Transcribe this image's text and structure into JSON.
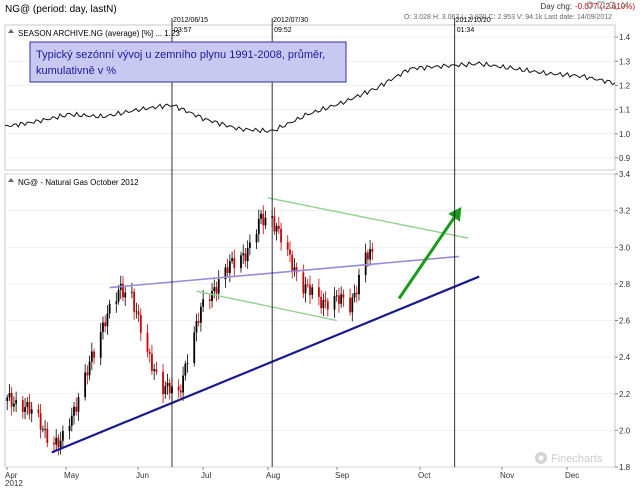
{
  "header": {
    "title": "NG@ (period: day, lastN)",
    "day_chg_label": "Day chg:",
    "day_chg_value": "-0.077 (-2.610%)",
    "ohlc_line": "O: 3.028  H: 3.062  L: 2.920  C: 2.953  V: 94.1k  Last date: 14/09/2012"
  },
  "top_panel": {
    "label": "SEASON ARCHIVE.NG (average) [%] ... 1.23",
    "note": {
      "line1": "Typický sezónní vývoj u zemního  plynu 1991-2008, průměr,",
      "line2": "kumulativně v %"
    }
  },
  "bottom_panel": {
    "label": "NG@ - Natural Gas October 2012"
  },
  "markers": [
    {
      "date": "2012/06/15",
      "time": "03:57"
    },
    {
      "date": "2012/07/30",
      "time": "09:52"
    },
    {
      "date": "2012/10/20",
      "time": "01:34"
    }
  ],
  "watermark": "Finecharts",
  "icons": [
    "pin-icon",
    "settings-icon",
    "zoom-icon",
    "close-icon",
    "collapse-icon"
  ],
  "colors": {
    "note_bg": "#c8c8f0",
    "note_border": "#3030a0",
    "note_text": "#1a1aa0",
    "upper_channel": "#9a8ad8",
    "lower_channel": "#1a1a8c",
    "flag_lines": "#8ed08e",
    "arrow": "#1a9a1a",
    "price": "#000000",
    "candle_down": "#cc0000"
  },
  "chart_data": [
    {
      "type": "line",
      "title": "SEASON ARCHIVE.NG (average) [%]",
      "ylim": [
        0.85,
        1.45
      ],
      "yticks": [
        "0.9",
        "1.0",
        "1.1",
        "1.2",
        "1.3",
        "1.4"
      ],
      "x": [
        "2012-04-01",
        "2012-04-15",
        "2012-04-30",
        "2012-05-15",
        "2012-05-31",
        "2012-06-15",
        "2012-06-30",
        "2012-07-15",
        "2012-07-30",
        "2012-08-15",
        "2012-08-31",
        "2012-09-15",
        "2012-09-30",
        "2012-10-15",
        "2012-10-31",
        "2012-11-15",
        "2012-11-30",
        "2012-12-15",
        "2012-12-31"
      ],
      "series": [
        {
          "values": [
            1.03,
            1.05,
            1.08,
            1.07,
            1.1,
            1.12,
            1.06,
            1.02,
            1.01,
            1.08,
            1.13,
            1.19,
            1.27,
            1.28,
            1.29,
            1.27,
            1.25,
            1.24,
            1.21
          ]
        }
      ]
    },
    {
      "type": "candlestick",
      "title": "NG@ - Natural Gas October 2012",
      "ylim": [
        1.8,
        3.4
      ],
      "yticks": [
        "1.8",
        "2.0",
        "2.2",
        "2.4",
        "2.6",
        "2.8",
        "3.0",
        "3.2",
        "3.4"
      ],
      "xticks": [
        "Apr",
        "2012",
        "May",
        "Jun",
        "Jul",
        "Aug",
        "Sep",
        "Oct",
        "Nov",
        "Dec"
      ],
      "x_range": [
        "2012-04-01",
        "2012-12-31"
      ],
      "close_path": [
        [
          "2012-04-02",
          2.16
        ],
        [
          "2012-04-09",
          2.15
        ],
        [
          "2012-04-16",
          2.05
        ],
        [
          "2012-04-23",
          1.93
        ],
        [
          "2012-04-26",
          1.92
        ],
        [
          "2012-05-02",
          2.12
        ],
        [
          "2012-05-09",
          2.35
        ],
        [
          "2012-05-16",
          2.62
        ],
        [
          "2012-05-23",
          2.76
        ],
        [
          "2012-05-28",
          2.75
        ],
        [
          "2012-06-04",
          2.4
        ],
        [
          "2012-06-11",
          2.25
        ],
        [
          "2012-06-18",
          2.18
        ],
        [
          "2012-06-22",
          2.42
        ],
        [
          "2012-06-29",
          2.68
        ],
        [
          "2012-07-06",
          2.82
        ],
        [
          "2012-07-13",
          2.92
        ],
        [
          "2012-07-20",
          3.0
        ],
        [
          "2012-07-25",
          3.15
        ],
        [
          "2012-07-30",
          3.17
        ],
        [
          "2012-08-06",
          2.95
        ],
        [
          "2012-08-13",
          2.8
        ],
        [
          "2012-08-20",
          2.7
        ],
        [
          "2012-08-27",
          2.72
        ],
        [
          "2012-09-03",
          2.68
        ],
        [
          "2012-09-10",
          2.95
        ],
        [
          "2012-09-14",
          2.95
        ]
      ],
      "upper_channel": [
        [
          "2012-05-18",
          2.78
        ],
        [
          "2012-10-22",
          2.95
        ]
      ],
      "lower_channel": [
        [
          "2012-04-22",
          1.88
        ],
        [
          "2012-10-31",
          2.84
        ]
      ],
      "flag_upper": [
        [
          "2012-07-28",
          3.27
        ],
        [
          "2012-10-26",
          3.05
        ]
      ],
      "flag_lower": [
        [
          "2012-06-26",
          2.76
        ],
        [
          "2012-08-28",
          2.6
        ]
      ],
      "arrow": {
        "from": [
          "2012-09-25",
          2.72
        ],
        "to": [
          "2012-10-23",
          3.22
        ]
      }
    }
  ]
}
